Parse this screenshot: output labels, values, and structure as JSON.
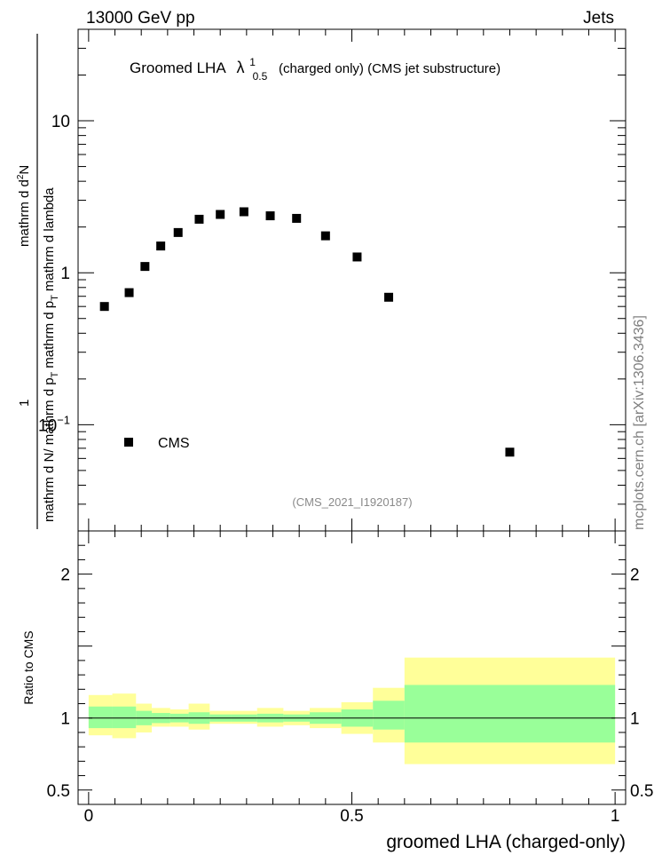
{
  "header": {
    "energy_label": "13000 GeV pp",
    "process_label": "Jets"
  },
  "watermark": "mcplots.cern.ch [arXiv:1306.3436]",
  "analysis_id": "(CMS_2021_I1920187)",
  "chart_data": [
    {
      "type": "scatter",
      "title_main": "Groomed LHA",
      "title_symbol": "λ",
      "title_sup": "1",
      "title_sub": "0.5",
      "title_rest": "(charged only) (CMS jet substructure)",
      "ylabel": {
        "num_one": "1",
        "num_d": "mathrm d N",
        "frac_right_a": "mathrm d",
        "frac_right_sup": "2",
        "frac_right_b": "N",
        "den_left_a": "mathrm d p",
        "den_left_sub": "T",
        "den_left_b": "mathrm d p",
        "den_left_sub2": "T",
        "den_right": "mathrm d lambda",
        "full": "1/N dN/... (as printed)"
      },
      "y_scale": "log",
      "ylim": [
        0.02,
        40
      ],
      "xlim": [
        -0.02,
        1.02
      ],
      "y_ticks": [
        {
          "value": 10,
          "label": "10"
        },
        {
          "value": 1,
          "label": "1"
        },
        {
          "value": 0.1,
          "label": "10",
          "exp": "−1"
        }
      ],
      "legend": {
        "entry": "CMS",
        "placement": "bottom-left"
      },
      "series": [
        {
          "name": "CMS",
          "marker": "square",
          "color": "#000000",
          "x": [
            0.03,
            0.077,
            0.107,
            0.137,
            0.17,
            0.21,
            0.25,
            0.295,
            0.345,
            0.395,
            0.45,
            0.51,
            0.57,
            0.8
          ],
          "y": [
            0.6,
            0.74,
            1.1,
            1.5,
            1.84,
            2.25,
            2.42,
            2.52,
            2.37,
            2.28,
            1.75,
            1.27,
            0.69,
            0.066
          ]
        }
      ]
    },
    {
      "type": "area",
      "ylabel": "Ratio to CMS",
      "xlabel": "groomed LHA (charged-only)",
      "xlim": [
        -0.02,
        1.02
      ],
      "ylim": [
        0.4,
        2.3
      ],
      "x_ticks": [
        {
          "value": 0,
          "label": "0"
        },
        {
          "value": 0.5,
          "label": "0.5"
        },
        {
          "value": 1,
          "label": "1"
        }
      ],
      "y_ticks": [
        {
          "value": 2,
          "label": "2"
        },
        {
          "value": 1,
          "label": "1"
        },
        {
          "value": 0.5,
          "label": "0.5"
        }
      ],
      "reference_line": 1,
      "band_colors": {
        "inner": "#99ff99",
        "outer": "#ffff99"
      },
      "bins": [
        {
          "x0": 0.0,
          "x1": 0.045,
          "inner_lo": 0.93,
          "inner_hi": 1.08,
          "outer_lo": 0.88,
          "outer_hi": 1.16
        },
        {
          "x0": 0.045,
          "x1": 0.09,
          "inner_lo": 0.93,
          "inner_hi": 1.08,
          "outer_lo": 0.86,
          "outer_hi": 1.17
        },
        {
          "x0": 0.09,
          "x1": 0.12,
          "inner_lo": 0.95,
          "inner_hi": 1.05,
          "outer_lo": 0.9,
          "outer_hi": 1.1
        },
        {
          "x0": 0.12,
          "x1": 0.155,
          "inner_lo": 0.965,
          "inner_hi": 1.035,
          "outer_lo": 0.94,
          "outer_hi": 1.07
        },
        {
          "x0": 0.155,
          "x1": 0.19,
          "inner_lo": 0.97,
          "inner_hi": 1.03,
          "outer_lo": 0.94,
          "outer_hi": 1.06
        },
        {
          "x0": 0.19,
          "x1": 0.23,
          "inner_lo": 0.96,
          "inner_hi": 1.04,
          "outer_lo": 0.92,
          "outer_hi": 1.1
        },
        {
          "x0": 0.23,
          "x1": 0.27,
          "inner_lo": 0.975,
          "inner_hi": 1.025,
          "outer_lo": 0.96,
          "outer_hi": 1.05
        },
        {
          "x0": 0.27,
          "x1": 0.32,
          "inner_lo": 0.975,
          "inner_hi": 1.025,
          "outer_lo": 0.96,
          "outer_hi": 1.05
        },
        {
          "x0": 0.32,
          "x1": 0.37,
          "inner_lo": 0.97,
          "inner_hi": 1.03,
          "outer_lo": 0.94,
          "outer_hi": 1.07
        },
        {
          "x0": 0.37,
          "x1": 0.42,
          "inner_lo": 0.975,
          "inner_hi": 1.025,
          "outer_lo": 0.95,
          "outer_hi": 1.05
        },
        {
          "x0": 0.42,
          "x1": 0.48,
          "inner_lo": 0.96,
          "inner_hi": 1.04,
          "outer_lo": 0.93,
          "outer_hi": 1.07
        },
        {
          "x0": 0.48,
          "x1": 0.54,
          "inner_lo": 0.94,
          "inner_hi": 1.06,
          "outer_lo": 0.89,
          "outer_hi": 1.11
        },
        {
          "x0": 0.54,
          "x1": 0.6,
          "inner_lo": 0.92,
          "inner_hi": 1.12,
          "outer_lo": 0.83,
          "outer_hi": 1.21
        },
        {
          "x0": 0.6,
          "x1": 1.0,
          "inner_lo": 0.83,
          "inner_hi": 1.23,
          "outer_lo": 0.68,
          "outer_hi": 1.42
        }
      ]
    }
  ]
}
